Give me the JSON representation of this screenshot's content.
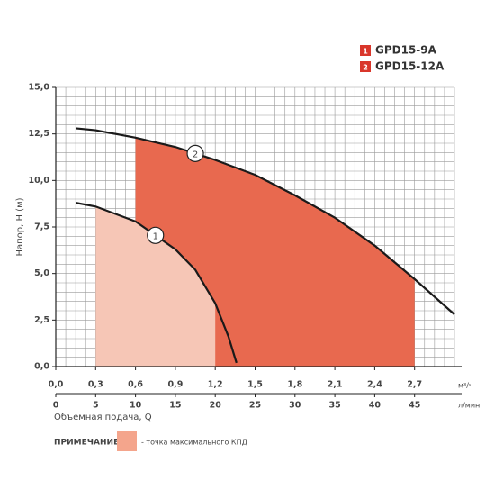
{
  "chart_data": {
    "type": "line",
    "legend_position": "upper right",
    "series": [
      {
        "name": "GPD15-9A",
        "marker": "1",
        "color": "#f6c6b6",
        "legend_color": "#d9362b",
        "line_color": "#1a1a1a",
        "x": [
          0.15,
          0.3,
          0.6,
          0.9,
          1.05,
          1.2,
          1.3,
          1.36
        ],
        "y": [
          8.8,
          8.6,
          7.8,
          6.3,
          5.2,
          3.4,
          1.6,
          0.2
        ],
        "efficiency_range": [
          0.3,
          1.2
        ]
      },
      {
        "name": "GPD15-12A",
        "marker": "2",
        "color": "#e8694f",
        "legend_color": "#d9362b",
        "line_color": "#1a1a1a",
        "x": [
          0.15,
          0.3,
          0.6,
          0.9,
          1.2,
          1.5,
          1.8,
          2.1,
          2.4,
          2.7,
          3.0
        ],
        "y": [
          12.8,
          12.7,
          12.3,
          11.8,
          11.1,
          10.3,
          9.2,
          8.0,
          6.5,
          4.7,
          2.8
        ],
        "efficiency_range": [
          0.6,
          2.7
        ]
      }
    ],
    "ylabel": "Напор, H (м)",
    "xlabel": "Объемная подача, Q",
    "x_unit": "м³/ч",
    "x2_unit": "л/мин",
    "xlim": [
      0,
      3.0
    ],
    "ylim": [
      0,
      15
    ],
    "x2lim": [
      0,
      50
    ],
    "grid": true,
    "xticks": [
      {
        "value": 0,
        "label": "0,0"
      },
      {
        "value": 0.3,
        "label": "0,3"
      },
      {
        "value": 0.6,
        "label": "0,6"
      },
      {
        "value": 0.9,
        "label": "0,9"
      },
      {
        "value": 1.2,
        "label": "1,2"
      },
      {
        "value": 1.5,
        "label": "1,5"
      },
      {
        "value": 1.8,
        "label": "1,8"
      },
      {
        "value": 2.1,
        "label": "2,1"
      },
      {
        "value": 2.4,
        "label": "2,4"
      },
      {
        "value": 2.7,
        "label": "2,7"
      }
    ],
    "x2ticks": [
      0,
      5,
      10,
      15,
      20,
      25,
      30,
      35,
      40,
      45
    ],
    "yticks": [
      {
        "value": 0,
        "label": "0,0"
      },
      {
        "value": 2.5,
        "label": "2,5"
      },
      {
        "value": 5,
        "label": "5,0"
      },
      {
        "value": 7.5,
        "label": "7,5"
      },
      {
        "value": 10,
        "label": "10,0"
      },
      {
        "value": 12.5,
        "label": "12,5"
      },
      {
        "value": 15,
        "label": "15,0"
      }
    ],
    "note": {
      "label": "ПРИМЕЧАНИЕ:",
      "text": "- точка максимального КПД",
      "color": "#f4a58c"
    }
  }
}
